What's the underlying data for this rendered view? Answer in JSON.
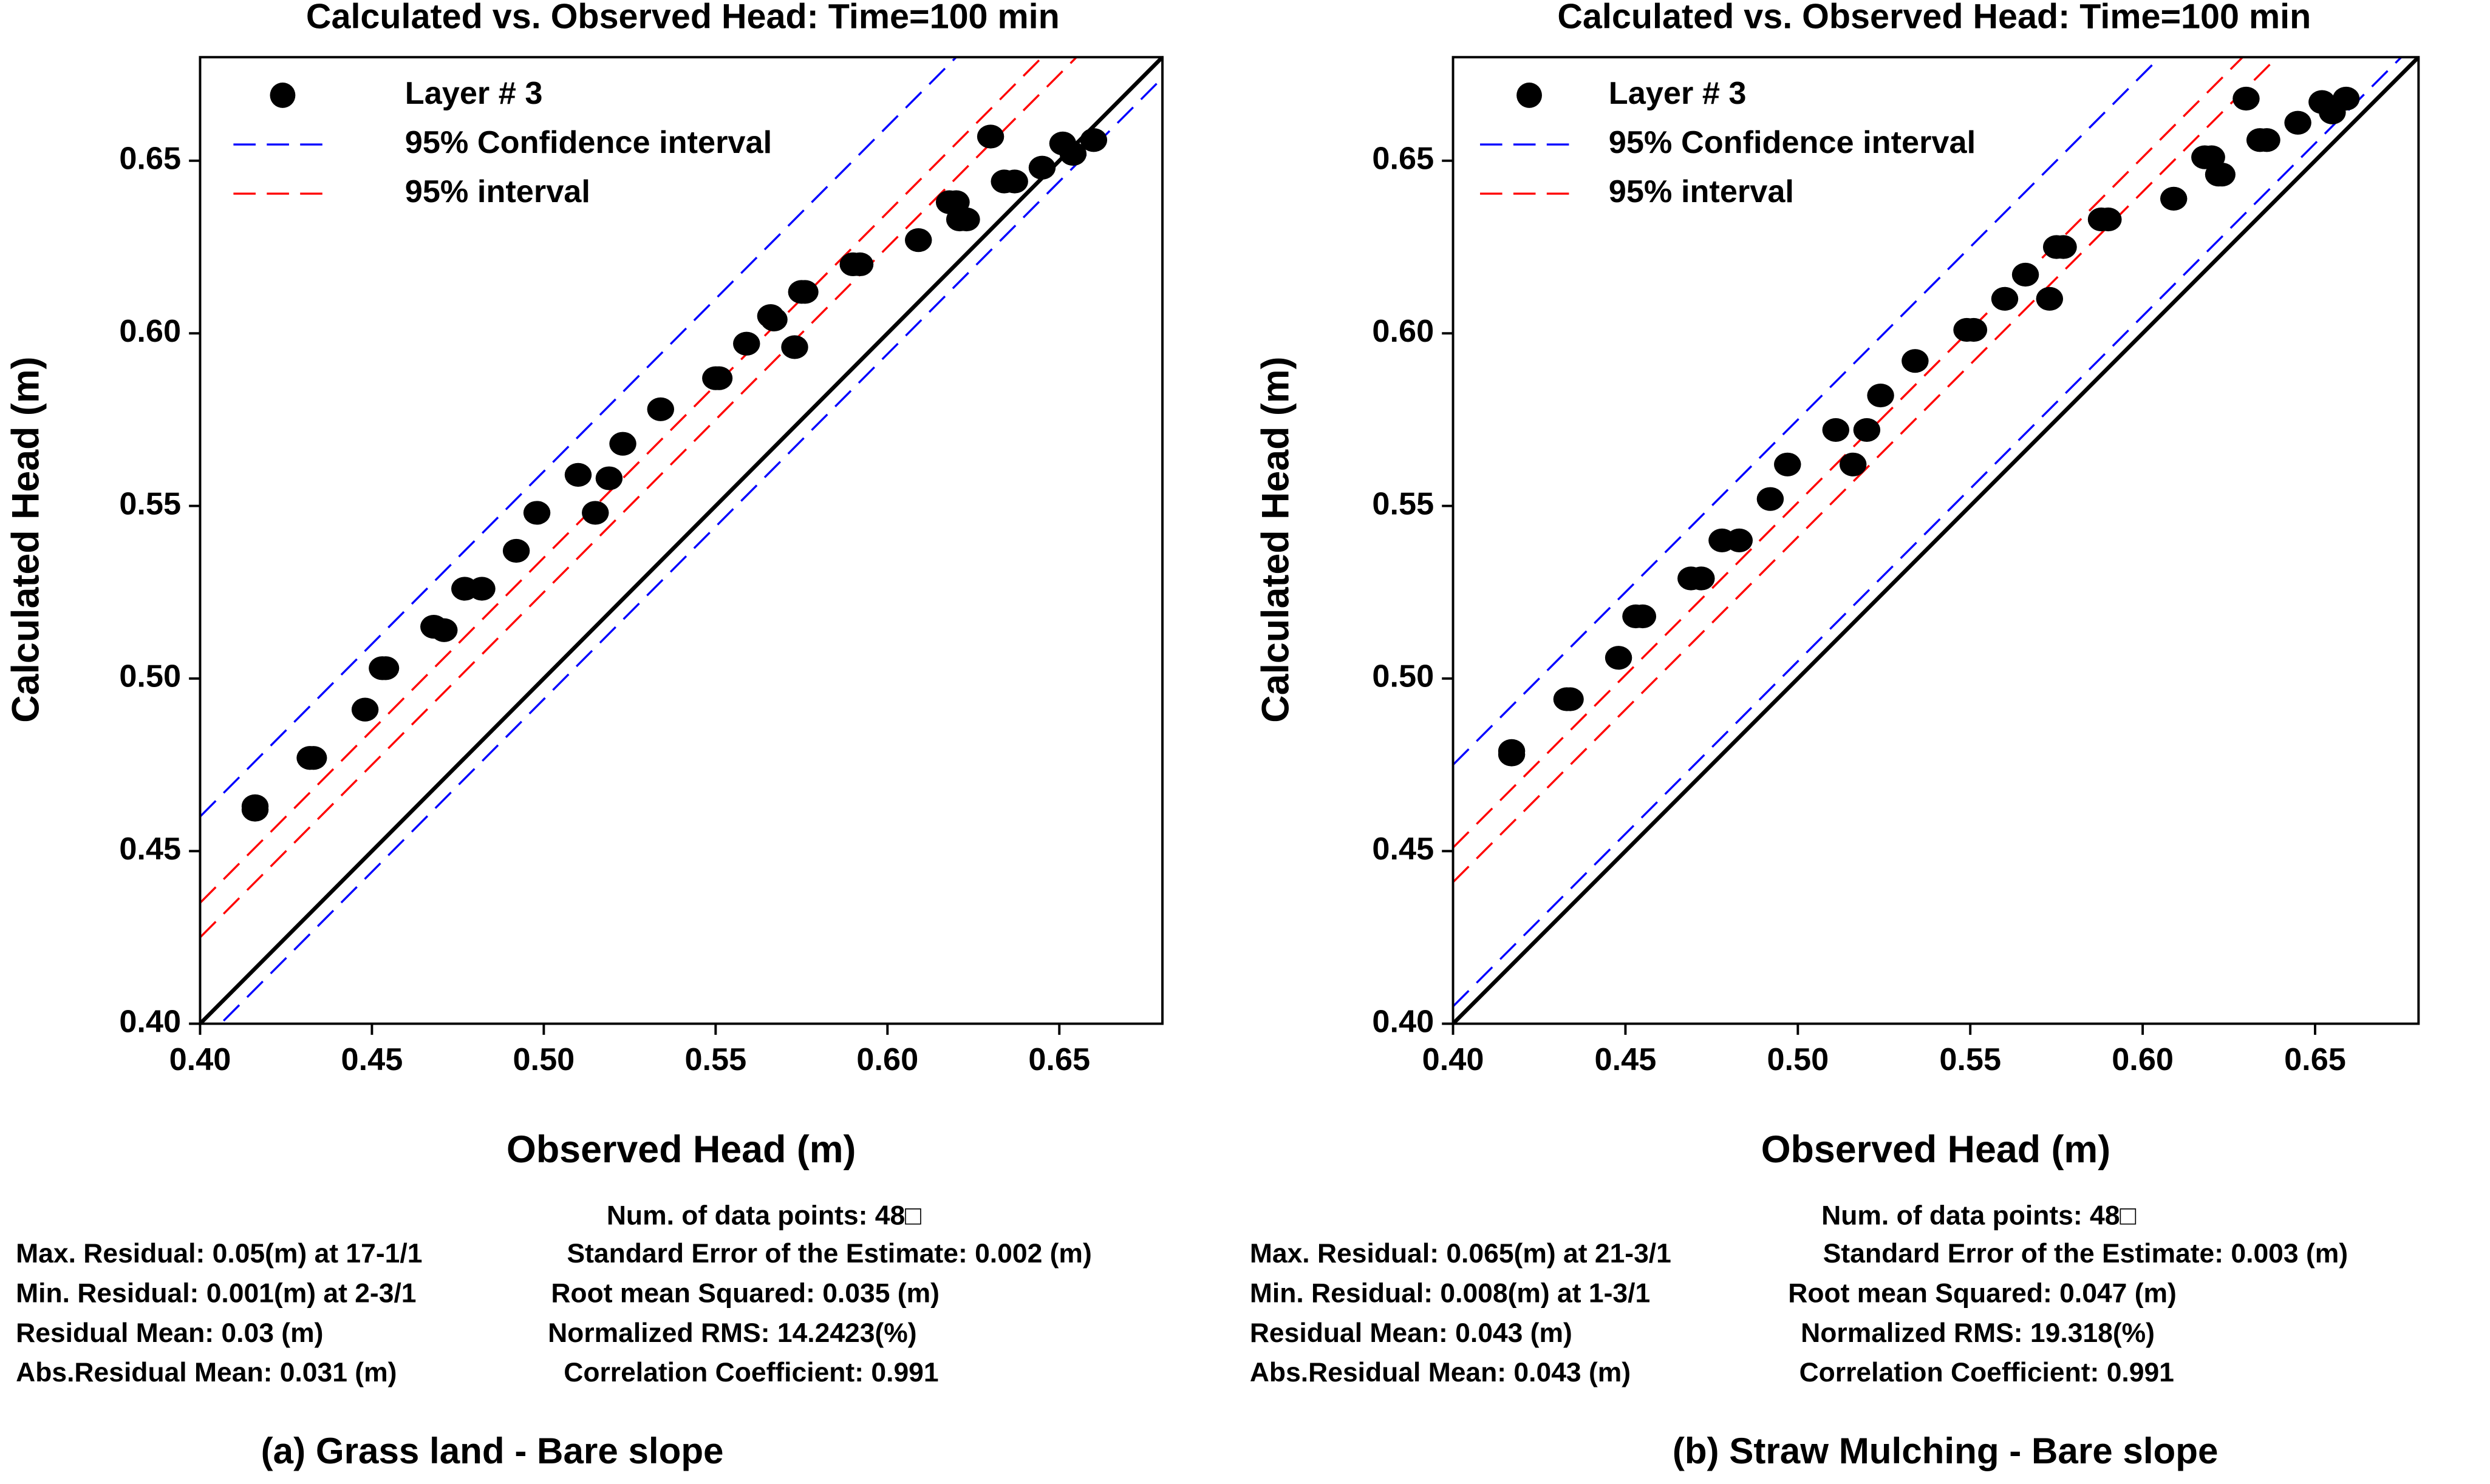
{
  "chart_data": [
    {
      "type": "scatter",
      "title": "Calculated vs. Observed Head: Time=100 min",
      "xlabel": "Observed Head (m)",
      "ylabel": "Calculated Head (m)",
      "xlim": [
        0.4,
        0.68
      ],
      "ylim": [
        0.4,
        0.68
      ],
      "xticks": [
        {
          "value": 0.4,
          "label": "0.40"
        },
        {
          "value": 0.45,
          "label": "0.45"
        },
        {
          "value": 0.5,
          "label": "0.50"
        },
        {
          "value": 0.55,
          "label": "0.55"
        },
        {
          "value": 0.6,
          "label": "0.60"
        },
        {
          "value": 0.65,
          "label": "0.65"
        }
      ],
      "yticks": [
        {
          "value": 0.4,
          "label": "0.40"
        },
        {
          "value": 0.45,
          "label": "0.45"
        },
        {
          "value": 0.5,
          "label": "0.50"
        },
        {
          "value": 0.55,
          "label": "0.55"
        },
        {
          "value": 0.6,
          "label": "0.60"
        },
        {
          "value": 0.65,
          "label": "0.65"
        }
      ],
      "series": [
        {
          "name": "Layer  # 3",
          "color": "#000000",
          "style": "points",
          "x": [
            0.416,
            0.416,
            0.432,
            0.433,
            0.448,
            0.453,
            0.454,
            0.468,
            0.471,
            0.477,
            0.482,
            0.492,
            0.498,
            0.51,
            0.515,
            0.519,
            0.523,
            0.534,
            0.55,
            0.551,
            0.559,
            0.566,
            0.567,
            0.573,
            0.575,
            0.576,
            0.59,
            0.592,
            0.609,
            0.618,
            0.62,
            0.621,
            0.623,
            0.63,
            0.634,
            0.637,
            0.645,
            0.651,
            0.654,
            0.66
          ],
          "values": [
            0.463,
            0.462,
            0.477,
            0.477,
            0.491,
            0.503,
            0.503,
            0.515,
            0.514,
            0.526,
            0.526,
            0.537,
            0.548,
            0.559,
            0.548,
            0.558,
            0.568,
            0.578,
            0.587,
            0.587,
            0.597,
            0.605,
            0.604,
            0.596,
            0.612,
            0.612,
            0.62,
            0.62,
            0.627,
            0.638,
            0.638,
            0.633,
            0.633,
            0.657,
            0.644,
            0.644,
            0.648,
            0.655,
            0.652,
            0.656
          ]
        },
        {
          "name": "95% Confidence interval",
          "color": "#0000ff",
          "style": "dashed",
          "x": [
            0.4,
            0.68
          ],
          "upper": [
            0.46,
            0.74
          ],
          "lower": [
            0.394,
            0.674
          ]
        },
        {
          "name": "95% interval",
          "color": "#ff0000",
          "style": "dashed",
          "x": [
            0.4,
            0.68
          ],
          "upper": [
            0.435,
            0.715
          ],
          "lower": [
            0.425,
            0.705
          ]
        },
        {
          "color": "#000000",
          "style": "solid",
          "x": [
            0.4,
            0.68
          ],
          "values": [
            0.4,
            0.68
          ]
        }
      ],
      "stats": {
        "count": "Num. of data points: 48□",
        "left": [
          "Max. Residual: 0.05(m) at 17-1/1",
          "Min. Residual: 0.001(m) at 2-3/1",
          "Residual Mean: 0.03 (m)",
          "Abs.Residual Mean: 0.031 (m)"
        ],
        "right": [
          "Standard Error of the Estimate: 0.002 (m)",
          "Root mean Squared: 0.035 (m)",
          "Normalized RMS: 14.2423(%)",
          "Correlation Coefficient: 0.991"
        ]
      },
      "caption": "(a) Grass land -  Bare slope"
    },
    {
      "type": "scatter",
      "title": "Calculated vs. Observed Head: Time=100 min",
      "xlabel": "Observed Head (m)",
      "ylabel": "Calculated Head (m)",
      "xlim": [
        0.4,
        0.68
      ],
      "ylim": [
        0.4,
        0.68
      ],
      "xticks": [
        {
          "value": 0.4,
          "label": "0.40"
        },
        {
          "value": 0.45,
          "label": "0.45"
        },
        {
          "value": 0.5,
          "label": "0.50"
        },
        {
          "value": 0.55,
          "label": "0.55"
        },
        {
          "value": 0.6,
          "label": "0.60"
        },
        {
          "value": 0.65,
          "label": "0.65"
        }
      ],
      "yticks": [
        {
          "value": 0.4,
          "label": "0.40"
        },
        {
          "value": 0.45,
          "label": "0.45"
        },
        {
          "value": 0.5,
          "label": "0.50"
        },
        {
          "value": 0.55,
          "label": "0.55"
        },
        {
          "value": 0.6,
          "label": "0.60"
        },
        {
          "value": 0.65,
          "label": "0.65"
        }
      ],
      "series": [
        {
          "name": "Layer  # 3",
          "color": "#000000",
          "style": "points",
          "x": [
            0.417,
            0.417,
            0.433,
            0.434,
            0.448,
            0.453,
            0.455,
            0.469,
            0.472,
            0.478,
            0.483,
            0.492,
            0.497,
            0.511,
            0.516,
            0.52,
            0.524,
            0.534,
            0.549,
            0.551,
            0.56,
            0.566,
            0.573,
            0.575,
            0.577,
            0.588,
            0.59,
            0.609,
            0.618,
            0.62,
            0.622,
            0.623,
            0.63,
            0.634,
            0.636,
            0.645,
            0.652,
            0.655,
            0.659
          ],
          "values": [
            0.479,
            0.478,
            0.494,
            0.494,
            0.506,
            0.518,
            0.518,
            0.529,
            0.529,
            0.54,
            0.54,
            0.552,
            0.562,
            0.572,
            0.562,
            0.572,
            0.582,
            0.592,
            0.601,
            0.601,
            0.61,
            0.617,
            0.61,
            0.625,
            0.625,
            0.633,
            0.633,
            0.639,
            0.651,
            0.651,
            0.646,
            0.646,
            0.668,
            0.656,
            0.656,
            0.661,
            0.667,
            0.664,
            0.668
          ]
        },
        {
          "name": "95% Confidence interval",
          "color": "#0000ff",
          "style": "dashed",
          "x": [
            0.4,
            0.68
          ],
          "upper": [
            0.475,
            0.755
          ],
          "lower": [
            0.405,
            0.685
          ]
        },
        {
          "name": "95% interval",
          "color": "#ff0000",
          "style": "dashed",
          "x": [
            0.4,
            0.68
          ],
          "upper": [
            0.451,
            0.731
          ],
          "lower": [
            0.441,
            0.721
          ]
        },
        {
          "color": "#000000",
          "style": "solid",
          "x": [
            0.4,
            0.68
          ],
          "values": [
            0.4,
            0.68
          ]
        }
      ],
      "stats": {
        "count": "Num. of data points: 48□",
        "left": [
          "Max. Residual: 0.065(m) at 21-3/1",
          "Min. Residual: 0.008(m) at 1-3/1",
          "Residual Mean: 0.043 (m)",
          "Abs.Residual Mean: 0.043 (m)"
        ],
        "right": [
          "Standard Error of the Estimate: 0.003 (m)",
          "Root mean Squared: 0.047 (m)",
          "Normalized RMS: 19.318(%)",
          "Correlation Coefficient: 0.991"
        ]
      },
      "caption": "(b)  Straw Mulching -  Bare slope"
    }
  ]
}
